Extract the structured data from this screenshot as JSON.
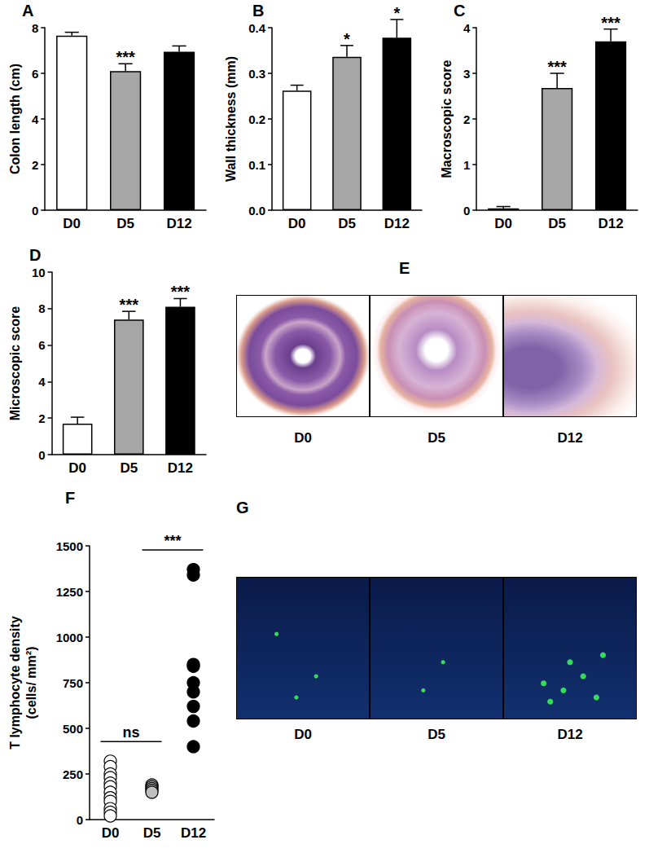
{
  "chart_data": [
    {
      "type": "bar",
      "title": "A",
      "ylabel": "Colon length (cm)",
      "categories": [
        "D0",
        "D5",
        "D12"
      ],
      "values": [
        7.65,
        6.1,
        6.95
      ],
      "errors": [
        0.15,
        0.32,
        0.25
      ],
      "colors": [
        "#ffffff",
        "#a6a6a6",
        "#000000"
      ],
      "ylim": [
        0,
        8
      ],
      "yticks": [
        0,
        2,
        4,
        6,
        8
      ],
      "grid": false,
      "annotations": [
        {
          "category": "D5",
          "text": "***"
        }
      ]
    },
    {
      "type": "bar",
      "title": "B",
      "ylabel": "Wall thickness (mm)",
      "categories": [
        "D0",
        "D5",
        "D12"
      ],
      "values": [
        0.262,
        0.336,
        0.378
      ],
      "errors": [
        0.012,
        0.025,
        0.04
      ],
      "colors": [
        "#ffffff",
        "#a6a6a6",
        "#000000"
      ],
      "ylim": [
        0,
        0.4
      ],
      "yticks": [
        {
          "value": 0,
          "label": "0.0"
        },
        0.1,
        0.2,
        0.3,
        0.4
      ],
      "grid": false,
      "annotations": [
        {
          "category": "D5",
          "text": "*"
        },
        {
          "category": "D12",
          "text": "*"
        }
      ]
    },
    {
      "type": "bar",
      "title": "C",
      "ylabel": "Macroscopic score",
      "categories": [
        "D0",
        "D5",
        "D12"
      ],
      "values": [
        0.04,
        2.68,
        3.7
      ],
      "errors": [
        0.04,
        0.32,
        0.27
      ],
      "colors": [
        "#ffffff",
        "#a6a6a6",
        "#000000"
      ],
      "ylim": [
        0,
        4
      ],
      "yticks": [
        0,
        1,
        2,
        3,
        4
      ],
      "grid": false,
      "annotations": [
        {
          "category": "D5",
          "text": "***"
        },
        {
          "category": "D12",
          "text": "***"
        }
      ]
    },
    {
      "type": "bar",
      "title": "D",
      "ylabel": "Microscopic score",
      "categories": [
        "D0",
        "D5",
        "D12"
      ],
      "values": [
        1.7,
        7.4,
        8.1
      ],
      "errors": [
        0.35,
        0.45,
        0.45
      ],
      "colors": [
        "#ffffff",
        "#a6a6a6",
        "#000000"
      ],
      "ylim": [
        0,
        10
      ],
      "yticks": [
        0,
        2,
        4,
        6,
        8,
        10
      ],
      "grid": false,
      "annotations": [
        {
          "category": "D5",
          "text": "***"
        },
        {
          "category": "D12",
          "text": "***"
        }
      ]
    },
    {
      "type": "scatter",
      "title": "F",
      "ylabel": "T lymphocyte density\n(cells/ mm²)",
      "categories": [
        "D0",
        "D5",
        "D12"
      ],
      "values": [
        [
          320,
          290,
          250,
          230,
          200,
          180,
          150,
          120,
          100,
          60,
          40,
          20
        ],
        [
          190,
          180,
          170,
          160,
          150
        ],
        [
          1370,
          1340,
          850,
          840,
          750,
          700,
          620,
          540,
          400
        ]
      ],
      "colors": [
        "#ffffff",
        "#bfbfbf",
        "#000000"
      ],
      "marker": "circle",
      "ylim": [
        0,
        1500
      ],
      "yticks": [
        0,
        250,
        500,
        750,
        1000,
        1250,
        1500
      ],
      "grid": false,
      "brackets": [
        {
          "from": "D0",
          "to": "D5",
          "text": "ns"
        },
        {
          "from": "D5",
          "to": "D12",
          "text": "***"
        }
      ]
    }
  ],
  "images": [
    {
      "title": "E",
      "labels": [
        "D0",
        "D5",
        "D12"
      ]
    },
    {
      "title": "G",
      "labels": [
        "D0",
        "D5",
        "D12"
      ]
    }
  ]
}
